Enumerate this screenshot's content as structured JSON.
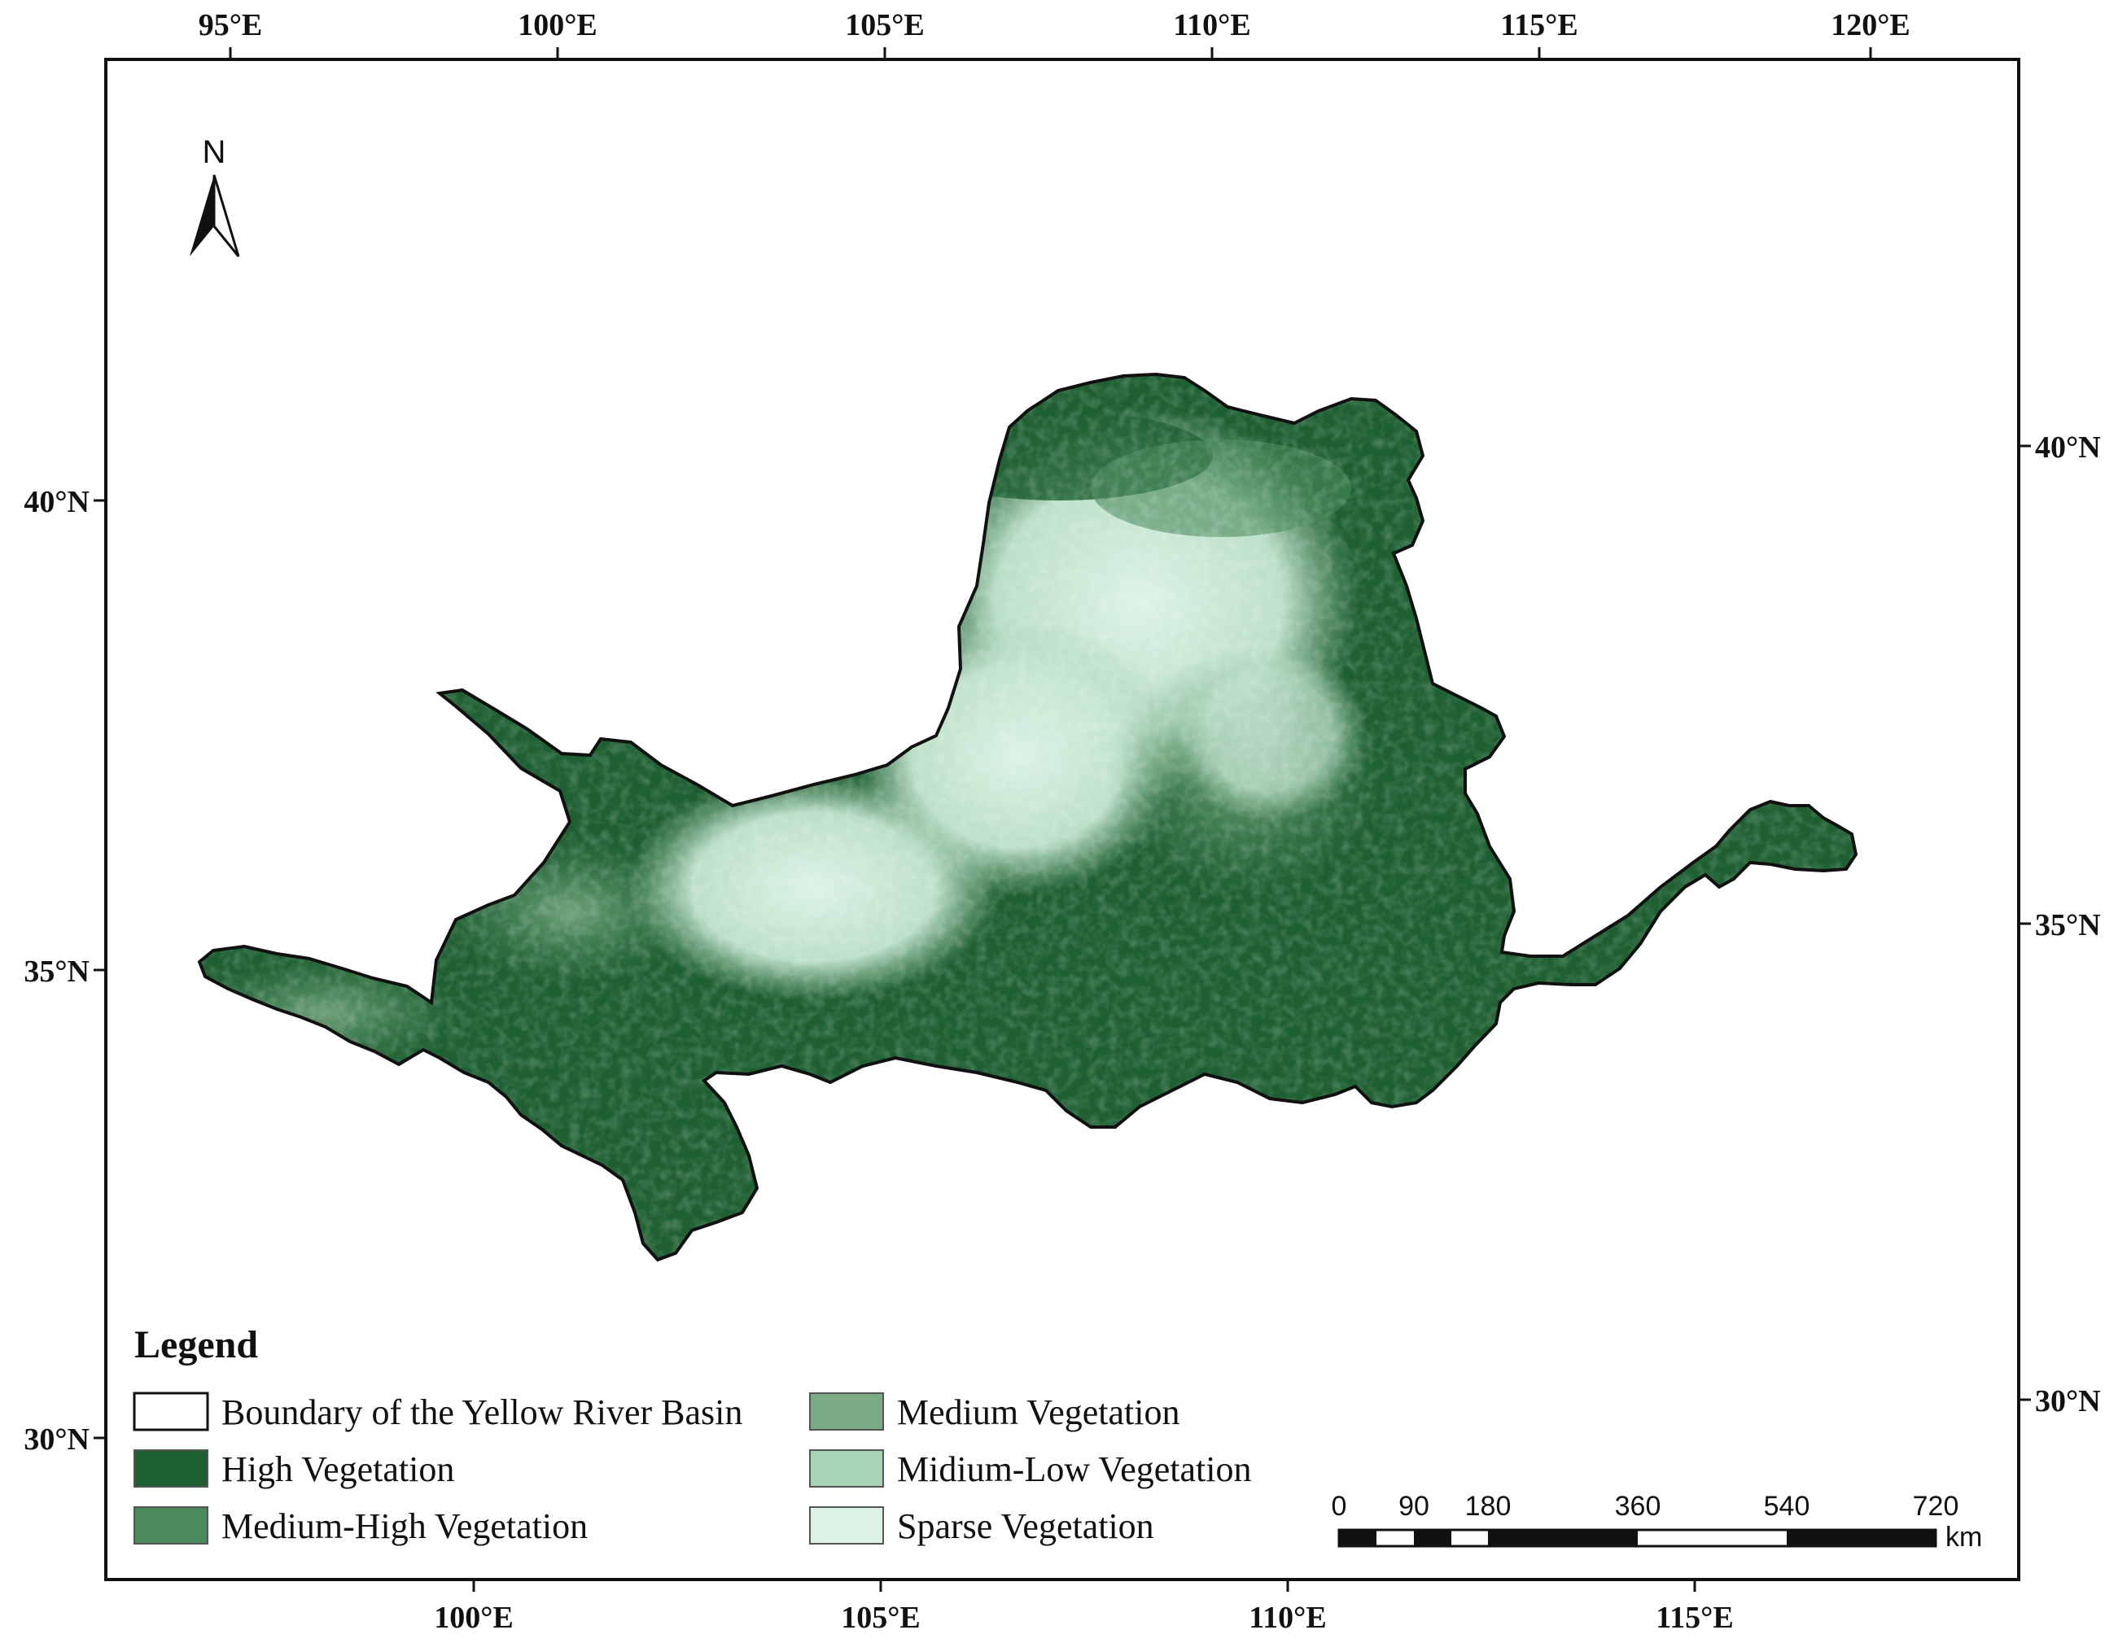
{
  "map": {
    "top_lon_labels": [
      "95°E",
      "100°E",
      "105°E",
      "110°E",
      "115°E",
      "120°E"
    ],
    "bottom_lon_labels": [
      "100°E",
      "105°E",
      "110°E",
      "115°E"
    ],
    "left_lat_labels": [
      "40°N",
      "35°N",
      "30°N"
    ],
    "right_lat_labels": [
      "40°N",
      "35°N",
      "30°N"
    ],
    "north_arrow_label": "N"
  },
  "legend": {
    "title": "Legend",
    "items": [
      {
        "label": "Boundary of the Yellow River Basin",
        "color": "#ffffff"
      },
      {
        "label": "High Vegetation",
        "color": "#1e6032"
      },
      {
        "label": "Medium-High Vegetation",
        "color": "#4a8a5c"
      },
      {
        "label": "Medium Vegetation",
        "color": "#7aab84"
      },
      {
        "label": "Midium-Low Vegetation",
        "color": "#a8d2b4"
      },
      {
        "label": "Sparse Vegetation",
        "color": "#dcf3e6"
      }
    ]
  },
  "scale_bar": {
    "labels": [
      "0",
      "90",
      "180",
      "360",
      "540",
      "720"
    ],
    "unit": "km"
  },
  "colors": {
    "high": "#1e6032",
    "medium_high": "#4a8a5c",
    "medium": "#7aab84",
    "medium_low": "#a8d2b4",
    "sparse": "#dcf3e6"
  }
}
